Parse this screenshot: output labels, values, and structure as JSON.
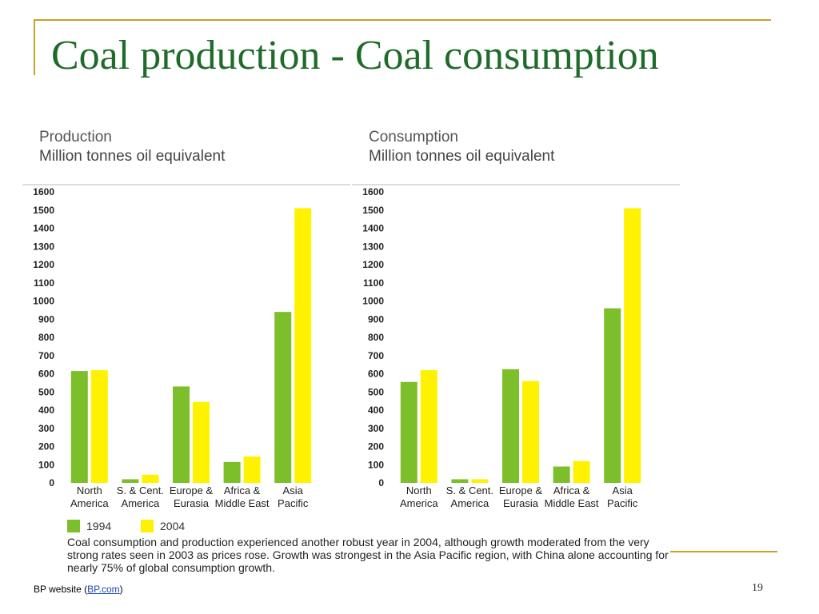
{
  "slide": {
    "title": "Coal production - Coal consumption",
    "page_number": "19",
    "footer": {
      "prefix": "BP website (",
      "link_text": "BP.com",
      "suffix": ")"
    }
  },
  "colors": {
    "accent": "#c9a227",
    "title": "#1f6b2a",
    "series_1994": "#7cbf2a",
    "series_2004": "#fff200"
  },
  "caption": "Coal consumption and production experienced another robust year in 2004, although growth moderated from the very strong rates seen in 2003 as prices rose. Growth was strongest in the Asia Pacific region, with China alone accounting for nearly 75% of global consumption growth.",
  "legend": [
    {
      "label": "1994",
      "color": "#7cbf2a"
    },
    {
      "label": "2004",
      "color": "#fff200"
    }
  ],
  "chart_data": [
    {
      "type": "bar",
      "title": "Production",
      "subtitle": "Million tonnes oil equivalent",
      "categories": [
        [
          "North",
          "America"
        ],
        [
          "S. & Cent.",
          "America"
        ],
        [
          "Europe &",
          "Eurasia"
        ],
        [
          "Africa &",
          "Middle East"
        ],
        [
          "Asia",
          "Pacific"
        ]
      ],
      "series": [
        {
          "name": "1994",
          "color": "#7cbf2a",
          "values": [
            615,
            20,
            530,
            115,
            940
          ]
        },
        {
          "name": "2004",
          "color": "#fff200",
          "values": [
            620,
            45,
            445,
            145,
            1510
          ]
        }
      ],
      "ylim": [
        0,
        1600
      ],
      "yticks": [
        0,
        100,
        200,
        300,
        400,
        500,
        600,
        700,
        800,
        900,
        1000,
        1100,
        1200,
        1300,
        1400,
        1500,
        1600
      ]
    },
    {
      "type": "bar",
      "title": "Consumption",
      "subtitle": "Million tonnes oil equivalent",
      "categories": [
        [
          "North",
          "America"
        ],
        [
          "S. & Cent.",
          "America"
        ],
        [
          "Europe &",
          "Eurasia"
        ],
        [
          "Africa &",
          "Middle East"
        ],
        [
          "Asia",
          "Pacific"
        ]
      ],
      "series": [
        {
          "name": "1994",
          "color": "#7cbf2a",
          "values": [
            555,
            20,
            625,
            90,
            960
          ]
        },
        {
          "name": "2004",
          "color": "#fff200",
          "values": [
            620,
            20,
            560,
            120,
            1510
          ]
        }
      ],
      "ylim": [
        0,
        1600
      ],
      "yticks": [
        0,
        100,
        200,
        300,
        400,
        500,
        600,
        700,
        800,
        900,
        1000,
        1100,
        1200,
        1300,
        1400,
        1500,
        1600
      ]
    }
  ]
}
